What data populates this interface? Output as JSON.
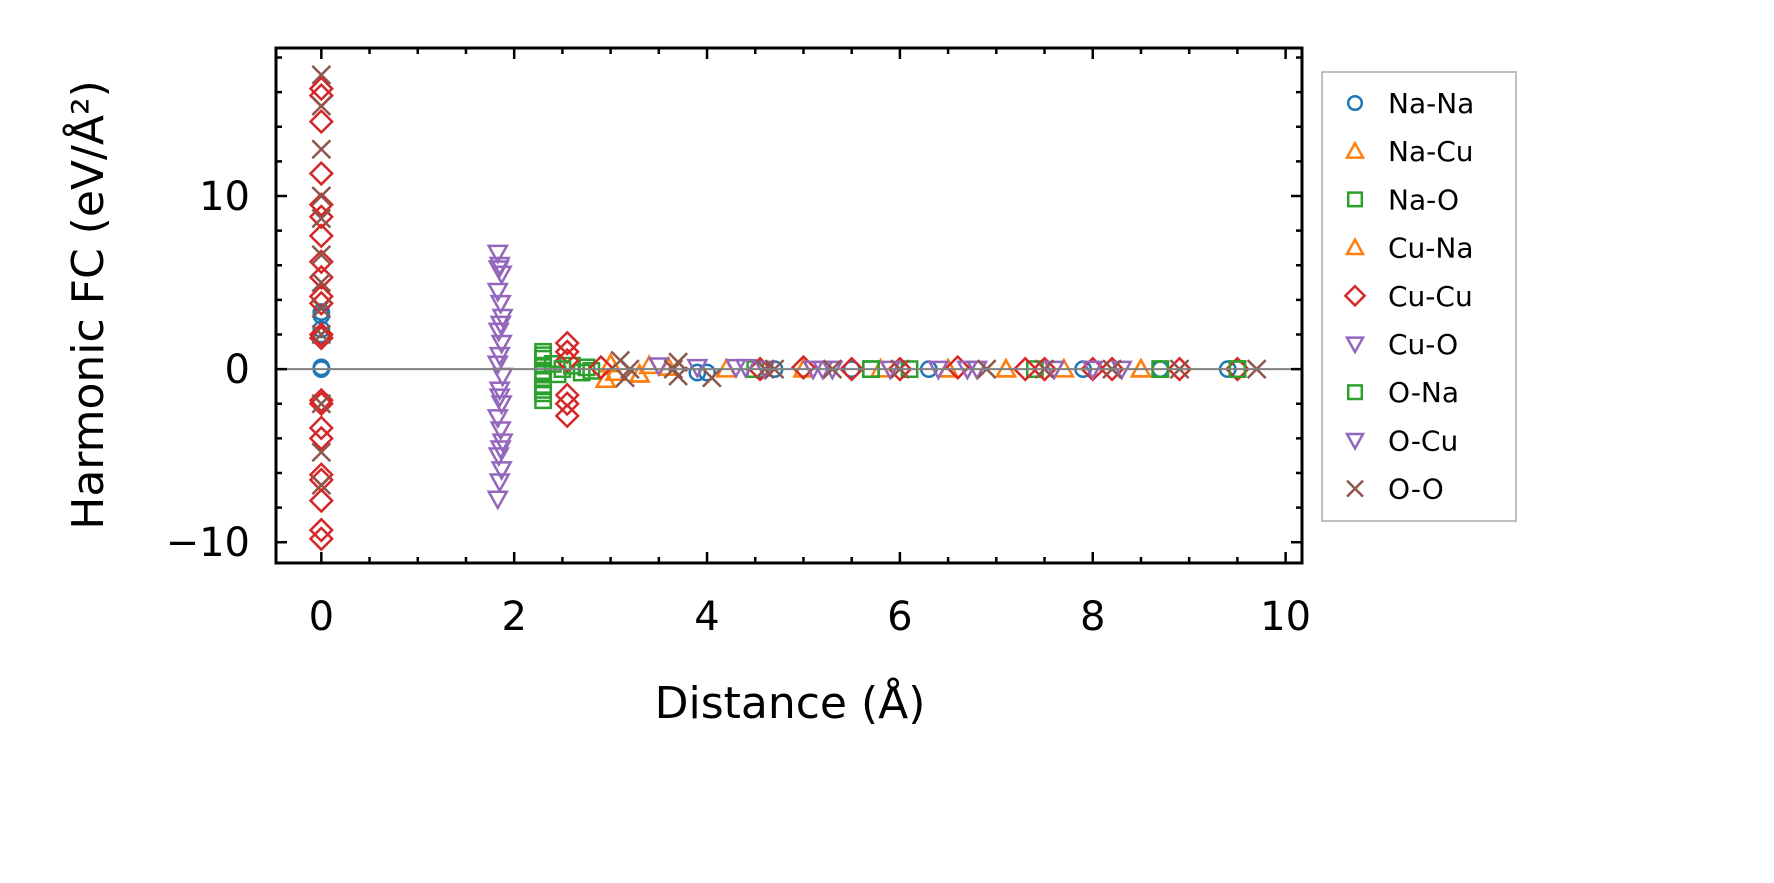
{
  "chart_data": {
    "type": "scatter",
    "title": "",
    "xlabel": "Distance (Å)",
    "ylabel": "Harmonic FC (eV/Å²)",
    "xlim": [
      -0.47,
      10.17
    ],
    "ylim": [
      -11.2,
      18.55
    ],
    "xticks": [
      0,
      2,
      4,
      6,
      8,
      10
    ],
    "xtick_labels": [
      "0",
      "2",
      "4",
      "6",
      "8",
      "10"
    ],
    "yticks": [
      -10,
      0,
      10
    ],
    "ytick_labels": [
      "−10",
      "0",
      "10"
    ],
    "grid": false,
    "zero_line": true,
    "legend_position": "outside-right",
    "series": [
      {
        "name": "Na-Na",
        "marker": "circle",
        "color": "#1f77b4",
        "points": [
          [
            0,
            0
          ],
          [
            0,
            0.1
          ],
          [
            0,
            2.0
          ],
          [
            0,
            2.3
          ],
          [
            0,
            3.1
          ],
          [
            0,
            3.3
          ],
          [
            3.9,
            -0.2
          ],
          [
            4.0,
            -0.2
          ],
          [
            4.7,
            0
          ],
          [
            5.5,
            0
          ],
          [
            6.3,
            0
          ],
          [
            7.9,
            0
          ],
          [
            8.7,
            0
          ],
          [
            9.4,
            0
          ]
        ]
      },
      {
        "name": "Na-Cu",
        "marker": "triangle-up",
        "color": "#ff7f0e",
        "points": [
          [
            2.95,
            -0.6
          ],
          [
            3.0,
            0.3
          ],
          [
            3.05,
            -0.2
          ],
          [
            3.3,
            -0.3
          ],
          [
            3.4,
            0.2
          ],
          [
            3.6,
            0.1
          ],
          [
            4.2,
            0
          ],
          [
            5.0,
            0
          ],
          [
            5.8,
            0
          ],
          [
            6.5,
            0
          ],
          [
            7.1,
            0
          ],
          [
            7.7,
            0
          ],
          [
            8.5,
            0
          ]
        ]
      },
      {
        "name": "Na-O",
        "marker": "square",
        "color": "#2ca02c",
        "points": [
          [
            2.3,
            1.0
          ],
          [
            2.3,
            0.6
          ],
          [
            2.3,
            0.2
          ],
          [
            2.3,
            -0.2
          ],
          [
            2.3,
            -0.6
          ],
          [
            2.3,
            -1.0
          ],
          [
            2.3,
            -1.4
          ],
          [
            2.3,
            -1.8
          ],
          [
            2.4,
            0.3
          ],
          [
            2.45,
            -0.3
          ],
          [
            2.6,
            0.2
          ],
          [
            2.7,
            -0.2
          ],
          [
            2.75,
            0.1
          ],
          [
            2.8,
            -0.1
          ],
          [
            4.5,
            0
          ],
          [
            5.7,
            0
          ],
          [
            6.1,
            0
          ],
          [
            7.4,
            0
          ],
          [
            8.7,
            0
          ],
          [
            9.5,
            0
          ]
        ]
      },
      {
        "name": "Cu-Na",
        "marker": "triangle-up",
        "color": "#ff7f0e",
        "points": [
          [
            2.95,
            -0.6
          ],
          [
            3.0,
            0.3
          ],
          [
            3.3,
            -0.3
          ],
          [
            3.6,
            0.1
          ],
          [
            5.0,
            0
          ],
          [
            6.5,
            0
          ],
          [
            7.1,
            0
          ],
          [
            8.5,
            0
          ]
        ]
      },
      {
        "name": "Cu-Cu",
        "marker": "diamond",
        "color": "#d62728",
        "points": [
          [
            0,
            16.2
          ],
          [
            0,
            15.8
          ],
          [
            0,
            14.3
          ],
          [
            0,
            11.3
          ],
          [
            0,
            9.5
          ],
          [
            0,
            8.8
          ],
          [
            0,
            7.7
          ],
          [
            0,
            6.2
          ],
          [
            0,
            5.3
          ],
          [
            0,
            4.2
          ],
          [
            0,
            3.8
          ],
          [
            0,
            2.0
          ],
          [
            0,
            1.8
          ],
          [
            0,
            -1.8
          ],
          [
            0,
            -2.0
          ],
          [
            0,
            -3.4
          ],
          [
            0,
            -4.0
          ],
          [
            0,
            -6.1
          ],
          [
            0,
            -6.4
          ],
          [
            0,
            -7.6
          ],
          [
            0,
            -9.3
          ],
          [
            0,
            -9.8
          ],
          [
            2.55,
            1.5
          ],
          [
            2.55,
            1.0
          ],
          [
            2.55,
            0.5
          ],
          [
            2.55,
            -1.5
          ],
          [
            2.55,
            -2.0
          ],
          [
            2.55,
            -2.7
          ],
          [
            2.9,
            0.1
          ],
          [
            4.55,
            0
          ],
          [
            5.0,
            0.1
          ],
          [
            5.5,
            0
          ],
          [
            6.0,
            0
          ],
          [
            6.6,
            0.1
          ],
          [
            7.3,
            0
          ],
          [
            7.5,
            0
          ],
          [
            8.0,
            0
          ],
          [
            8.2,
            0
          ],
          [
            8.9,
            0
          ],
          [
            9.5,
            0
          ]
        ]
      },
      {
        "name": "Cu-O",
        "marker": "triangle-down",
        "color": "#9467bd",
        "points": [
          [
            1.83,
            6.7
          ],
          [
            1.85,
            6.0
          ],
          [
            1.87,
            5.5
          ],
          [
            1.83,
            4.5
          ],
          [
            1.86,
            3.8
          ],
          [
            1.88,
            3.0
          ],
          [
            1.84,
            2.2
          ],
          [
            1.87,
            1.5
          ],
          [
            1.85,
            0.8
          ],
          [
            1.83,
            0.3
          ],
          [
            1.88,
            -0.4
          ],
          [
            1.85,
            -1.2
          ],
          [
            1.87,
            -2.0
          ],
          [
            1.83,
            -2.8
          ],
          [
            1.86,
            -3.5
          ],
          [
            1.88,
            -4.2
          ],
          [
            1.84,
            -5.0
          ],
          [
            1.87,
            -5.8
          ],
          [
            1.85,
            -6.5
          ],
          [
            1.83,
            -7.5
          ],
          [
            3.5,
            0.2
          ],
          [
            3.9,
            0.1
          ],
          [
            4.3,
            0.1
          ],
          [
            4.6,
            0
          ],
          [
            5.1,
            0
          ],
          [
            5.3,
            0
          ],
          [
            5.9,
            0
          ],
          [
            6.4,
            0
          ],
          [
            6.8,
            0
          ],
          [
            7.6,
            0
          ],
          [
            8.3,
            0
          ]
        ]
      },
      {
        "name": "O-Na",
        "marker": "square",
        "color": "#2ca02c",
        "points": [
          [
            2.3,
            0.8
          ],
          [
            2.3,
            -1.2
          ],
          [
            2.5,
            0
          ],
          [
            5.7,
            0
          ],
          [
            8.7,
            0
          ],
          [
            9.5,
            0
          ]
        ]
      },
      {
        "name": "O-Cu",
        "marker": "triangle-down",
        "color": "#9467bd",
        "points": [
          [
            1.84,
            5.8
          ],
          [
            1.86,
            2.6
          ],
          [
            1.85,
            -1.6
          ],
          [
            1.86,
            -4.6
          ],
          [
            4.4,
            0.1
          ],
          [
            5.2,
            0
          ],
          [
            6.7,
            0
          ],
          [
            8.0,
            0
          ]
        ]
      },
      {
        "name": "O-O",
        "marker": "x",
        "color": "#8c564b",
        "points": [
          [
            0,
            17.0
          ],
          [
            0,
            15.2
          ],
          [
            0,
            12.7
          ],
          [
            0,
            10.0
          ],
          [
            0,
            8.7
          ],
          [
            0,
            6.6
          ],
          [
            0,
            5.0
          ],
          [
            0,
            3.5
          ],
          [
            0,
            2.0
          ],
          [
            0,
            -2.0
          ],
          [
            0,
            -4.8
          ],
          [
            0,
            -6.7
          ],
          [
            3.1,
            0.5
          ],
          [
            3.15,
            -0.5
          ],
          [
            3.2,
            0
          ],
          [
            3.7,
            0.4
          ],
          [
            3.7,
            -0.4
          ],
          [
            3.65,
            0
          ],
          [
            4.05,
            -0.5
          ],
          [
            4.6,
            0
          ],
          [
            4.7,
            0
          ],
          [
            5.3,
            0
          ],
          [
            6.0,
            0
          ],
          [
            6.9,
            0
          ],
          [
            7.5,
            0
          ],
          [
            8.2,
            0
          ],
          [
            8.9,
            0
          ],
          [
            9.7,
            0
          ]
        ]
      }
    ]
  }
}
